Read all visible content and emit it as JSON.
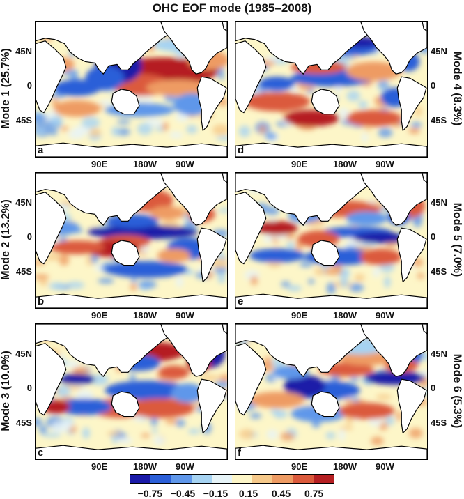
{
  "title": "OHC EOF mode (1985–2008)",
  "lat_labels": [
    "45N",
    "0",
    "45S"
  ],
  "lon_labels": [
    "90E",
    "180W",
    "90W"
  ],
  "panels": [
    {
      "letter": "a",
      "mode_label": "Mode 1 (25.7%)"
    },
    {
      "letter": "b",
      "mode_label": "Mode 2 (13.2%)"
    },
    {
      "letter": "c",
      "mode_label": "Mode 3 (10.0%)"
    },
    {
      "letter": "d",
      "mode_label": "Mode 4 (8.3%)"
    },
    {
      "letter": "e",
      "mode_label": "Mode 5 (7.0%)"
    },
    {
      "letter": "f",
      "mode_label": "Mode 6 (5.3%)"
    }
  ],
  "colorbar": {
    "ticks": [
      "−0.75",
      "−0.45",
      "−0.15",
      "0.15",
      "0.45",
      "0.75"
    ],
    "colors": [
      "#1a1aa8",
      "#2b5fd8",
      "#5f97ea",
      "#a6d3f2",
      "#e7f4f8",
      "#fdf6c8",
      "#f6c98a",
      "#ee9b63",
      "#db5a3c",
      "#b51f22"
    ]
  },
  "colors": {
    "land": "#ffffff",
    "ocean_neutral": "#fdf6c8",
    "coast": "#000000"
  }
}
